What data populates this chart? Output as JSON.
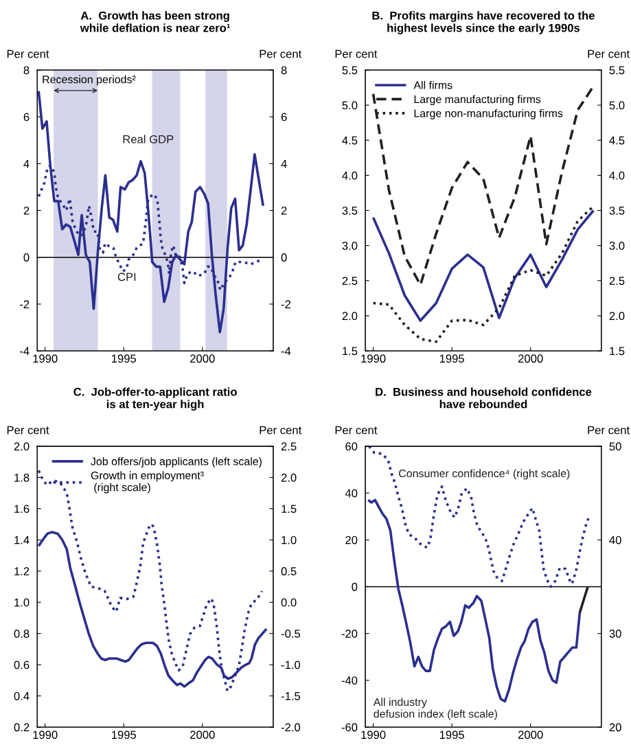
{
  "chart_data": [
    {
      "type": "line",
      "title": "A.  Growth has been strong\nwhile deflation is near zero¹",
      "ylabel": "Per cent",
      "y2label": "Per cent",
      "xlim": [
        1989.5,
        2004.5
      ],
      "xticks": [
        1990,
        1995,
        2000
      ],
      "ylim": [
        -4,
        8
      ],
      "yticks": [
        -4,
        -2,
        0,
        2,
        4,
        6,
        8
      ],
      "y2lim": [
        -4,
        8
      ],
      "y2ticks": [
        -4,
        -2,
        0,
        2,
        4,
        6,
        8
      ],
      "grid": false,
      "legend": false,
      "ref_lines": [
        {
          "axis": "y",
          "value": 0,
          "color": "#000000"
        }
      ],
      "bands": [
        {
          "axis": "x",
          "from": 1990.54,
          "to": 1993.35,
          "label": "Recession periods²",
          "color": "#d4d4ea"
        },
        {
          "axis": "x",
          "from": 1996.8,
          "to": 1998.59,
          "color": "#d4d4ea"
        },
        {
          "axis": "x",
          "from": 2000.19,
          "to": 2001.57,
          "color": "#d4d4ea"
        }
      ],
      "series": [
        {
          "name": "Real GDP",
          "color": "#2b2f8f",
          "line_style": "solid",
          "x": [
            1989.59,
            1989.83,
            1990.1,
            1990.32,
            1990.58,
            1990.83,
            1991.09,
            1991.34,
            1991.6,
            1991.86,
            1992.11,
            1992.33,
            1992.59,
            1992.84,
            1993.09,
            1993.35,
            1993.6,
            1993.83,
            1994.08,
            1994.32,
            1994.59,
            1994.8,
            1995.07,
            1995.31,
            1995.56,
            1995.82,
            1996.08,
            1996.33,
            1996.58,
            1996.81,
            1997.06,
            1997.31,
            1997.57,
            1997.83,
            1998.08,
            1998.33,
            1998.59,
            1998.85,
            1999.1,
            1999.32,
            1999.56,
            1999.85,
            2000.12,
            2000.36,
            2000.6,
            2000.84,
            2001.11,
            2001.35,
            2001.6,
            2001.83,
            2002.08,
            2002.33,
            2002.56,
            2002.81,
            2003.07,
            2003.32,
            2003.61,
            2003.86
          ],
          "values": [
            7.1,
            5.5,
            5.8,
            4.0,
            2.4,
            2.4,
            1.2,
            1.4,
            1.3,
            0.7,
            0.1,
            1.8,
            0.1,
            -0.2,
            -2.2,
            0.2,
            2.1,
            3.5,
            1.7,
            1.6,
            1.1,
            3.0,
            2.9,
            3.2,
            3.3,
            3.5,
            4.1,
            3.6,
            1.8,
            -0.2,
            -0.4,
            -0.4,
            -1.9,
            -1.3,
            -0.2,
            0.1,
            -0.1,
            -0.3,
            1.1,
            1.5,
            2.8,
            3.0,
            2.7,
            2.3,
            0.1,
            -1.6,
            -3.2,
            -2.2,
            0.4,
            2.1,
            2.5,
            0.3,
            0.5,
            1.4,
            2.9,
            4.4,
            3.2,
            2.2
          ]
        },
        {
          "name": "CPI",
          "color": "#2b2f8f",
          "line_style": "dotted",
          "x": [
            1989.59,
            1989.78,
            1989.97,
            1990.07,
            1990.22,
            1990.41,
            1990.58,
            1990.68,
            1990.84,
            1991.09,
            1991.34,
            1991.57,
            1991.75,
            1992.01,
            1992.26,
            1992.59,
            1992.79,
            1992.98,
            1993.09,
            1993.32,
            1993.49,
            1993.68,
            1993.81,
            1994.0,
            1994.34,
            1994.51,
            1994.73,
            1994.95,
            1995.17,
            1995.31,
            1995.6,
            1995.82,
            1996.23,
            1996.4,
            1996.55,
            1996.87,
            1997.13,
            1997.28,
            1997.35,
            1997.45,
            1997.64,
            1997.79,
            1997.89,
            1998.01,
            1998.15,
            1998.3,
            1998.52,
            1998.73,
            1998.85,
            1999.05,
            1999.39,
            1999.72,
            2000.12,
            2000.33,
            2000.51,
            2000.77,
            2000.92,
            2001.14,
            2001.38,
            2001.69,
            2001.91,
            2002.11,
            2002.59,
            2003.07,
            2003.42,
            2003.76
          ],
          "values": [
            2.6,
            2.9,
            3.2,
            3.6,
            3.9,
            3.9,
            3.6,
            3.0,
            2.5,
            2.3,
            2.0,
            2.5,
            1.5,
            1.1,
            0.9,
            1.3,
            2.2,
            1.6,
            1.1,
            1.1,
            0.3,
            0.2,
            0.6,
            0.5,
            0.4,
            0.0,
            -0.3,
            -0.6,
            -0.5,
            -0.1,
            0.1,
            0.4,
            0.6,
            1.5,
            2.5,
            2.7,
            2.5,
            1.4,
            0.8,
            0.4,
            0.1,
            -0.2,
            -0.7,
            0.2,
            0.5,
            0.1,
            0.1,
            -0.4,
            -1.1,
            -0.7,
            -0.6,
            -0.8,
            -0.7,
            -0.4,
            -0.4,
            -0.8,
            -0.9,
            -1.4,
            -1.1,
            -0.9,
            -0.6,
            -0.2,
            -0.2,
            -0.3,
            -0.2,
            -0.1
          ]
        }
      ]
    },
    {
      "type": "line",
      "title": "B.  Profits margins have recovered to the\nhighest levels since the early 1990s",
      "ylabel": "Per cent",
      "y2label": "Per cent",
      "xlim": [
        1989.5,
        2004.5
      ],
      "xticks": [
        1990,
        1995,
        2000
      ],
      "ylim": [
        1.5,
        5.5
      ],
      "yticks": [
        1.5,
        {
          "value": 2,
          "label": "2.0"
        },
        2.5,
        {
          "value": 3,
          "label": "3.0"
        },
        3.5,
        {
          "value": 4,
          "label": "4.0"
        },
        4.5,
        {
          "value": 5,
          "label": "5.0"
        },
        5.5
      ],
      "y2lim": [
        1.5,
        5.5
      ],
      "y2ticks": [
        1.5,
        {
          "value": 2,
          "label": "2.0"
        },
        2.5,
        {
          "value": 3,
          "label": "3.0"
        },
        3.5,
        {
          "value": 4,
          "label": "4.0"
        },
        4.5,
        {
          "value": 5,
          "label": "5.0"
        },
        5.5
      ],
      "grid": false,
      "legend": "top left",
      "series": [
        {
          "name": "All firms",
          "color": "#2b2f8f",
          "line_style": "solid",
          "x": [
            1990,
            1991,
            1992,
            1993,
            1994,
            1995,
            1996,
            1997,
            1998,
            1999,
            2000,
            2001,
            2002,
            2003,
            2004
          ],
          "values": [
            3.4,
            2.89,
            2.29,
            1.93,
            2.18,
            2.67,
            2.87,
            2.69,
            1.97,
            2.54,
            2.87,
            2.41,
            2.8,
            3.23,
            3.5
          ]
        },
        {
          "name": "Large manufacturing firms",
          "color": "#231f20",
          "line_style": "dashed",
          "x": [
            1990,
            1991,
            1992,
            1993,
            1994,
            1995,
            1996,
            1997,
            1998,
            1999,
            2000,
            2001,
            2002,
            2003,
            2004
          ],
          "values": [
            5.16,
            3.79,
            2.85,
            2.44,
            3.17,
            3.82,
            4.19,
            3.95,
            3.11,
            3.69,
            4.56,
            3.02,
            4.05,
            4.93,
            5.27
          ]
        },
        {
          "name": "Large non-manufacturing firms",
          "color": "#231f20",
          "line_style": "dotted",
          "x": [
            1990,
            1991,
            1992,
            1993,
            1994,
            1995,
            1996,
            1997,
            1998,
            1999,
            2000,
            2001,
            2002,
            2003,
            2004
          ],
          "values": [
            2.18,
            2.16,
            1.87,
            1.67,
            1.63,
            1.93,
            1.94,
            1.87,
            2.11,
            2.57,
            2.65,
            2.57,
            2.89,
            3.35,
            3.56
          ]
        }
      ]
    },
    {
      "type": "line",
      "title": "C.  Job-offer-to-applicant ratio\nis at ten-year high",
      "ylabel": "Per cent",
      "y2label": "Per cent",
      "xlim": [
        1989.5,
        2004.5
      ],
      "xticks": [
        1990,
        1995,
        2000
      ],
      "ylim": [
        0.2,
        2.0
      ],
      "yticks": [
        0.2,
        0.4,
        0.6,
        0.8,
        {
          "value": 1,
          "label": "1.0"
        },
        1.2,
        1.4,
        1.6,
        1.8,
        {
          "value": 2,
          "label": "2.0"
        }
      ],
      "y2lim": [
        -2,
        2.5
      ],
      "y2ticks": [
        {
          "value": -2,
          "label": "-2.0"
        },
        -1.5,
        {
          "value": -1,
          "label": "-1.0"
        },
        -0.5,
        {
          "value": 0,
          "label": "0.0"
        },
        0.5,
        {
          "value": 1,
          "label": "1.0"
        },
        1.5,
        {
          "value": 2,
          "label": "2.0"
        },
        2.5
      ],
      "grid": false,
      "legend": "top right",
      "series": [
        {
          "name": "Job offers/job applicants (left scale)",
          "color": "#2b2f8f",
          "line_style": "solid",
          "x": [
            1989.59,
            1989.85,
            1990.15,
            1990.44,
            1990.8,
            1991.09,
            1991.38,
            1991.6,
            1991.9,
            1992.19,
            1992.48,
            1992.77,
            1993.06,
            1993.35,
            1993.57,
            1993.82,
            1994.08,
            1994.55,
            1994.81,
            1995.1,
            1995.32,
            1995.61,
            1995.83,
            1996.12,
            1996.41,
            1996.85,
            1997.11,
            1997.36,
            1997.58,
            1997.84,
            1998.09,
            1998.38,
            1998.6,
            1998.85,
            1999.11,
            1999.4,
            1999.65,
            1999.91,
            2000.17,
            2000.38,
            2000.61,
            2000.93,
            2001.2,
            2001.37,
            2001.63,
            2001.88,
            2002.17,
            2002.46,
            2002.76,
            2002.97,
            2003.12,
            2003.34,
            2003.56,
            2003.82,
            2004.07
          ],
          "values": [
            1.36,
            1.4,
            1.44,
            1.45,
            1.44,
            1.4,
            1.34,
            1.22,
            1.11,
            1.0,
            0.9,
            0.8,
            0.72,
            0.67,
            0.64,
            0.63,
            0.64,
            0.64,
            0.63,
            0.62,
            0.63,
            0.67,
            0.7,
            0.73,
            0.74,
            0.74,
            0.72,
            0.67,
            0.6,
            0.53,
            0.5,
            0.47,
            0.48,
            0.46,
            0.48,
            0.5,
            0.55,
            0.59,
            0.63,
            0.65,
            0.64,
            0.6,
            0.58,
            0.53,
            0.51,
            0.52,
            0.55,
            0.58,
            0.6,
            0.61,
            0.64,
            0.73,
            0.77,
            0.8,
            0.83
          ]
        },
        {
          "name": "Growth in employment³\n (right scale)",
          "color": "#2b2f8f",
          "line_style": "dotted",
          "axis": "y2",
          "x": [
            1989.59,
            1989.81,
            1990.1,
            1990.54,
            1990.95,
            1991.21,
            1991.41,
            1991.57,
            1991.72,
            1991.9,
            1992.04,
            1992.26,
            1992.55,
            1992.74,
            1992.92,
            1993.35,
            1993.79,
            1994.01,
            1994.23,
            1994.52,
            1994.77,
            1995.17,
            1995.61,
            1995.83,
            1996.05,
            1996.24,
            1996.44,
            1996.63,
            1996.81,
            1996.95,
            1997.14,
            1997.29,
            1997.41,
            1997.58,
            1997.73,
            1997.87,
            1998.05,
            1998.28,
            1998.5,
            1998.75,
            1999.01,
            1999.21,
            1999.48,
            1999.84,
            2000.03,
            2000.28,
            2000.57,
            2000.71,
            2000.9,
            2001.05,
            2001.22,
            2001.44,
            2001.59,
            2001.81,
            2002.1,
            2002.32,
            2002.51,
            2002.68,
            2002.9,
            2003.12,
            2003.48,
            2003.78
          ],
          "values": [
            2.11,
            1.99,
            1.88,
            1.95,
            1.92,
            1.82,
            1.71,
            1.47,
            1.22,
            1.07,
            0.96,
            0.72,
            0.48,
            0.36,
            0.25,
            0.23,
            0.18,
            0.06,
            -0.07,
            -0.15,
            0.07,
            0.05,
            0.09,
            0.32,
            0.58,
            0.96,
            1.09,
            1.22,
            1.25,
            1.14,
            0.89,
            0.6,
            0.27,
            -0.03,
            -0.36,
            -0.62,
            -0.82,
            -0.98,
            -1.09,
            -1.02,
            -0.73,
            -0.51,
            -0.41,
            -0.38,
            -0.23,
            -0.03,
            0.06,
            -0.03,
            -0.36,
            -0.73,
            -1.06,
            -1.27,
            -1.42,
            -1.35,
            -1.16,
            -1.02,
            -0.73,
            -0.45,
            -0.18,
            -0.02,
            0.05,
            0.18
          ]
        }
      ]
    },
    {
      "type": "line",
      "title": "D.  Business and household confidence\nhave rebounded",
      "ylabel": "Per cent",
      "y2label": "Per cent",
      "xlim": [
        1989.5,
        2004.5
      ],
      "xticks": [
        1990,
        1995,
        2000
      ],
      "ylim": [
        -60,
        60
      ],
      "yticks": [
        -60,
        -40,
        -20,
        0,
        20,
        40,
        60
      ],
      "y2lim": [
        20,
        50
      ],
      "y2ticks": [
        20,
        30,
        40,
        50
      ],
      "grid": false,
      "legend": false,
      "ref_lines": [
        {
          "axis": "y",
          "value": 0,
          "color": "#000000"
        }
      ],
      "series": [
        {
          "name": "All industry\ndefusion index (left scale)",
          "color": "#2b2f8f",
          "line_style": "solid",
          "x": [
            1989.68,
            1989.88,
            1990.12,
            1990.36,
            1990.61,
            1990.84,
            1991.09,
            1991.34,
            1991.6,
            1991.85,
            1992.11,
            1992.36,
            1992.62,
            1992.87,
            1993.1,
            1993.35,
            1993.6,
            1993.86,
            1994.12,
            1994.37,
            1994.61,
            1994.88,
            1995.12,
            1995.39,
            1995.6,
            1995.85,
            1996.08,
            1996.36,
            1996.59,
            1996.87,
            1997.13,
            1997.38,
            1997.6,
            1997.86,
            1998.11,
            1998.37,
            1998.63,
            1998.88,
            1999.14,
            1999.39,
            1999.64,
            1999.87,
            2000.12,
            2000.38,
            2000.63,
            2000.87,
            2001.14,
            2001.4,
            2001.64,
            2001.89,
            2002.15,
            2002.4,
            2002.66,
            2002.91,
            2003.13
          ],
          "values": [
            37,
            36,
            37,
            34,
            31,
            29,
            24,
            11,
            -1,
            -8,
            -16,
            -24,
            -34,
            -30,
            -34,
            -36,
            -36,
            -27,
            -22,
            -18,
            -17,
            -15,
            -21,
            -19,
            -15,
            -8,
            -9,
            -7,
            -4,
            -6,
            -14,
            -22,
            -35,
            -43,
            -48,
            -49,
            -44,
            -37,
            -31,
            -26,
            -23,
            -18,
            -15,
            -14,
            -23,
            -28,
            -36,
            -40,
            -41,
            -32,
            -30,
            -28,
            -26,
            -26,
            -11
          ]
        },
        {
          "color": "#231f20",
          "line_style": "solid",
          "x": [
            2003.13,
            2003.64
          ],
          "values": [
            -11,
            0
          ]
        },
        {
          "name": "Consumer confidence⁴ (right scale)",
          "color": "#2b2f8f",
          "line_style": "dotted",
          "axis": "y2",
          "x": [
            1989.74,
            1990.07,
            1990.58,
            1990.95,
            1991.16,
            1991.38,
            1991.6,
            1991.82,
            1992.04,
            1992.26,
            1992.47,
            1992.77,
            1992.98,
            1993.2,
            1993.46,
            1993.64,
            1993.86,
            1994.08,
            1994.37,
            1994.63,
            1994.92,
            1995.17,
            1995.39,
            1995.63,
            1995.97,
            1996.23,
            1996.4,
            1996.62,
            1996.91,
            1997.16,
            1997.35,
            1997.5,
            1997.64,
            1997.86,
            1998.18,
            1998.37,
            1998.66,
            1998.95,
            1999.24,
            1999.53,
            1999.83,
            2000.12,
            2000.33,
            2000.55,
            2000.7,
            2000.84,
            2001.06,
            2001.28,
            2001.57,
            2001.86,
            2002.23,
            2002.45,
            2002.63,
            2002.88,
            2003.1,
            2003.28,
            2003.54,
            2003.68
          ],
          "values": [
            50.0,
            49.3,
            49.2,
            48.5,
            47.1,
            46.1,
            44.6,
            43.4,
            41.7,
            40.6,
            40.4,
            40.0,
            39.6,
            39.3,
            39.2,
            40.2,
            42.7,
            44.8,
            45.7,
            44.1,
            43.0,
            42.4,
            43.3,
            45.0,
            45.5,
            44.5,
            42.9,
            41.5,
            40.8,
            40.0,
            39.0,
            37.8,
            36.7,
            36.0,
            35.6,
            36.6,
            38.2,
            39.7,
            40.7,
            41.9,
            42.7,
            43.4,
            42.2,
            41.0,
            38.8,
            36.8,
            35.7,
            35.0,
            35.6,
            37.0,
            36.9,
            35.8,
            35.3,
            36.6,
            38.5,
            40.0,
            41.7,
            42.3
          ]
        }
      ]
    }
  ]
}
